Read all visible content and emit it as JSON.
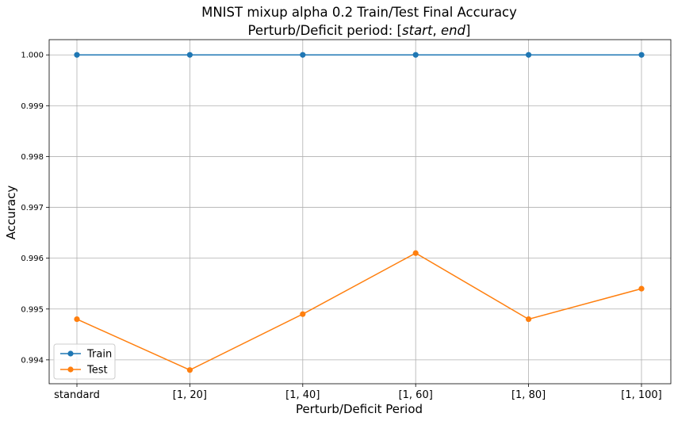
{
  "chart_data": {
    "type": "line",
    "title": "MNIST mixup alpha 0.2 Train/Test Final Accuracy",
    "subtitle": "Perturb/Deficit period: [start, end]",
    "subtitle_prefix": "Perturb/Deficit period: [",
    "subtitle_start": "start",
    "subtitle_sep": ", ",
    "subtitle_end": "end",
    "subtitle_suffix": "]",
    "xlabel": "Perturb/Deficit Period",
    "ylabel": "Accuracy",
    "categories": [
      "standard",
      "[1, 20]",
      "[1, 40]",
      "[1, 60]",
      "[1, 80]",
      "[1, 100]"
    ],
    "yticks": [
      "0.994",
      "0.995",
      "0.996",
      "0.997",
      "0.998",
      "0.999",
      "1.000"
    ],
    "ylim": [
      0.99353,
      1.0003
    ],
    "grid": true,
    "legend_position": "lower-left",
    "series": [
      {
        "name": "Train",
        "color": "#1f77b4",
        "values": [
          1.0,
          1.0,
          1.0,
          1.0,
          1.0,
          1.0
        ]
      },
      {
        "name": "Test",
        "color": "#ff7f0e",
        "values": [
          0.9948,
          0.9938,
          0.9949,
          0.9961,
          0.9948,
          0.9954
        ]
      }
    ]
  }
}
